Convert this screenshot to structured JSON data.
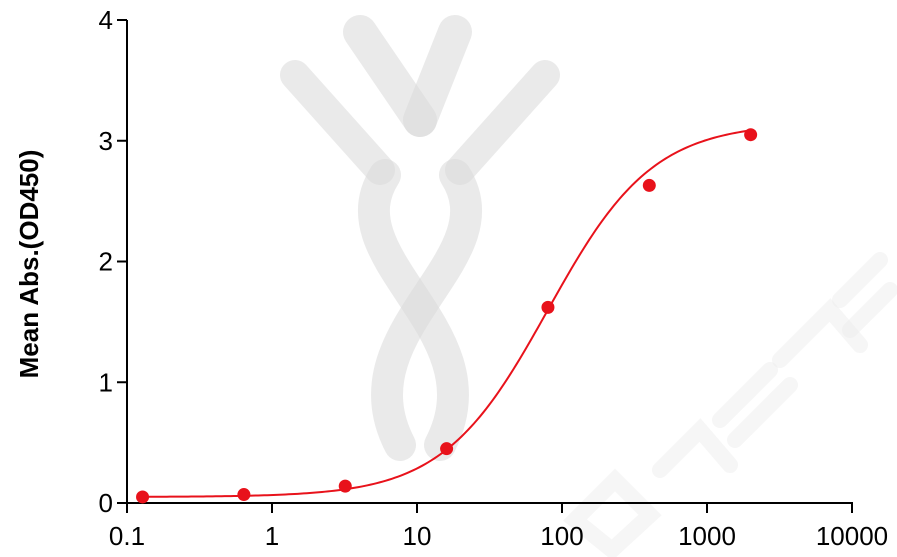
{
  "chart_data": {
    "type": "scatter",
    "title": "",
    "xlabel": "",
    "ylabel": "Mean Abs.(OD450)",
    "x_scale": "log",
    "xlim": [
      0.1,
      10000
    ],
    "ylim": [
      0,
      4
    ],
    "x_ticks": [
      0.1,
      1,
      10,
      100,
      1000,
      10000
    ],
    "x_tick_labels": [
      "0.1",
      "1",
      "10",
      "100",
      "1000",
      "10000"
    ],
    "y_ticks": [
      0,
      1,
      2,
      3,
      4
    ],
    "y_tick_labels": [
      "0",
      "1",
      "2",
      "3",
      "4"
    ],
    "grid": false,
    "legend": "none",
    "color": "#e8121b",
    "series": [
      {
        "x": [
          0.128,
          0.64,
          3.2,
          16,
          80,
          400,
          2000
        ],
        "y": [
          0.05,
          0.07,
          0.14,
          0.45,
          1.62,
          2.63,
          3.05
        ],
        "fit": "4PL"
      }
    ],
    "fit_params": {
      "bottom": 0.05,
      "top": 3.15,
      "ec50": 80,
      "hill": 1.2
    }
  }
}
